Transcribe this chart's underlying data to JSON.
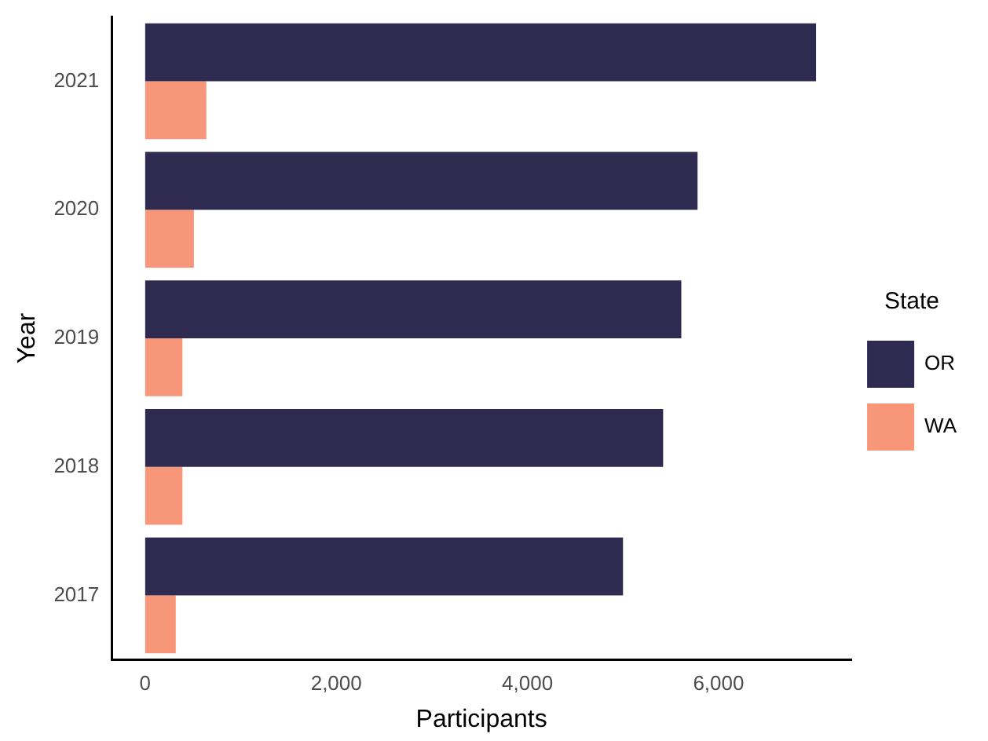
{
  "chart_data": {
    "type": "bar",
    "orientation": "horizontal",
    "xlabel": "Participants",
    "ylabel": "Year",
    "legend_title": "State",
    "legend": "right",
    "grid": false,
    "categories": [
      "2021",
      "2020",
      "2019",
      "2018",
      "2017"
    ],
    "series": [
      {
        "name": "OR",
        "color": "#2e2a50",
        "values": [
          7020,
          5780,
          5610,
          5420,
          5000
        ]
      },
      {
        "name": "WA",
        "color": "#f8967a",
        "values": [
          640,
          510,
          390,
          390,
          320
        ]
      }
    ],
    "xlim": [
      -350,
      7390
    ],
    "xticks": [
      0,
      {
        "value": 2000,
        "label": "2,000"
      },
      {
        "value": 4000,
        "label": "4,000"
      },
      {
        "value": 6000,
        "label": "6,000"
      }
    ]
  }
}
